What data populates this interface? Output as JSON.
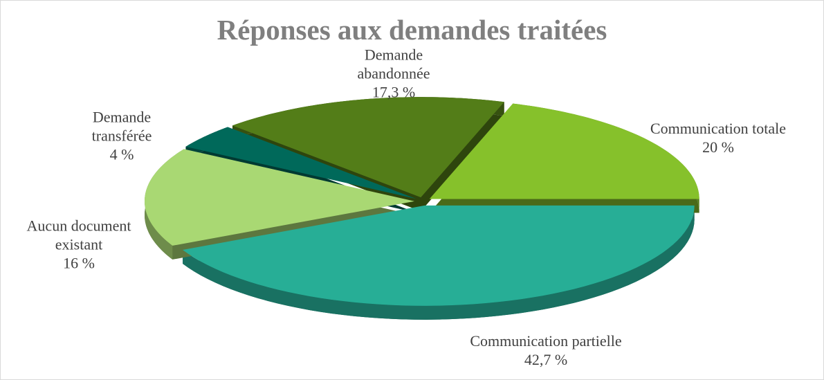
{
  "chart_data": {
    "type": "pie",
    "title": "Réponses aux demandes traitées",
    "categories": [
      "Communication partielle",
      "Aucun document existant",
      "Demande transférée",
      "Demande abandonnée",
      "Communication totale"
    ],
    "values": [
      42.7,
      16,
      4,
      17.3,
      20
    ],
    "value_labels": [
      "42,7 %",
      "16 %",
      "4 %",
      "17,3 %",
      "20 %"
    ],
    "colors": [
      "#27ae96",
      "#a9d873",
      "#00695a",
      "#537d18",
      "#86c12b"
    ]
  }
}
